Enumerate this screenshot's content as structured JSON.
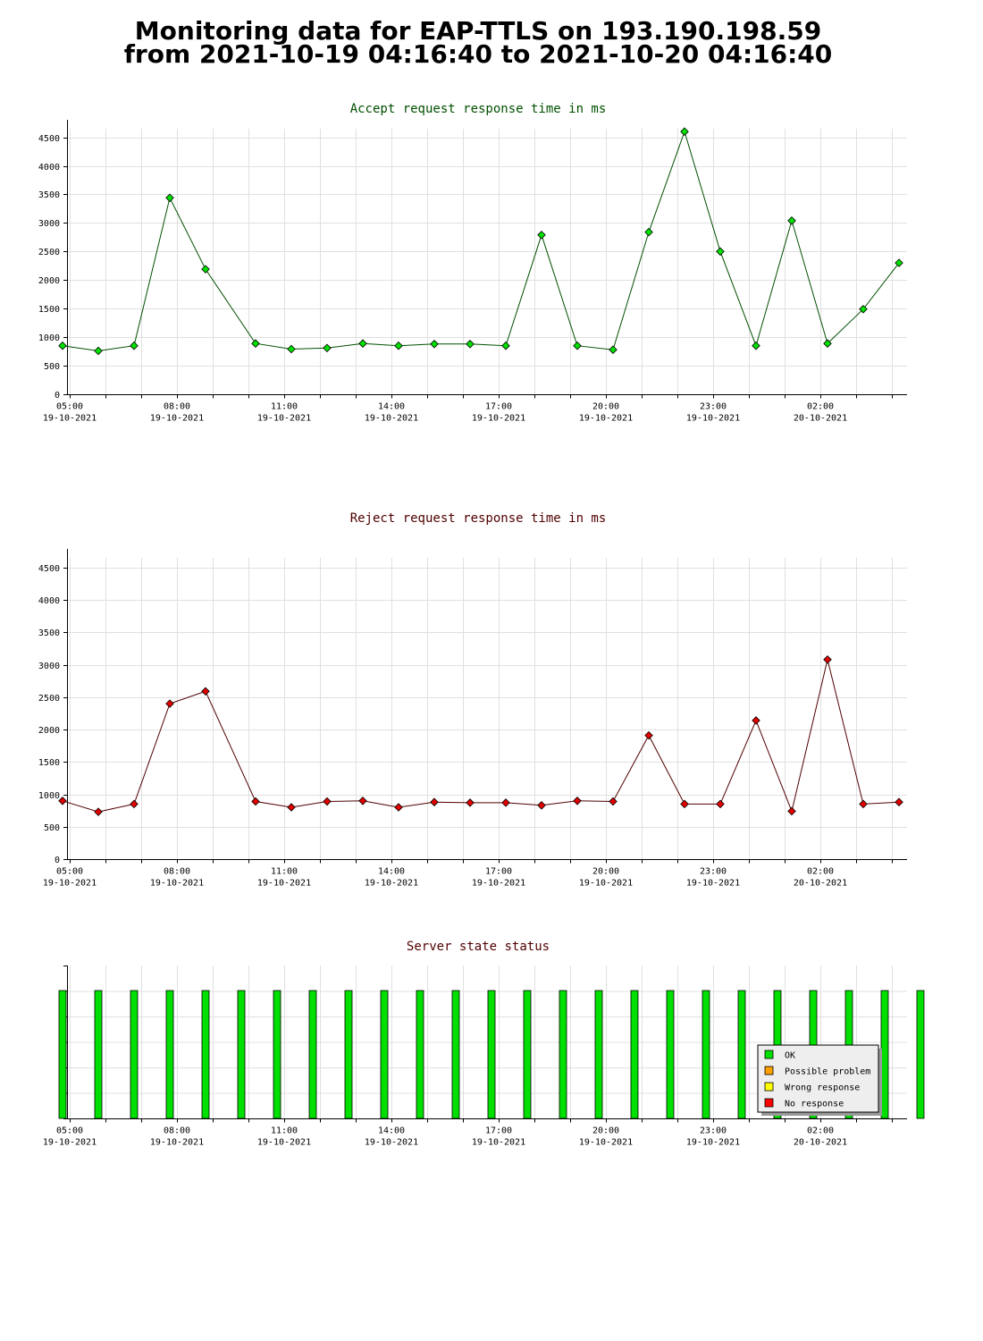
{
  "header": {
    "line1": "Monitoring data for EAP-TTLS on 193.190.198.59",
    "line2": "from 2021-10-19 04:16:40 to 2021-10-20 04:16:40"
  },
  "x_ticks": [
    {
      "time": "05:00",
      "date": "19-10-2021",
      "hours": 0
    },
    {
      "time": "08:00",
      "date": "19-10-2021",
      "hours": 3
    },
    {
      "time": "11:00",
      "date": "19-10-2021",
      "hours": 6
    },
    {
      "time": "14:00",
      "date": "19-10-2021",
      "hours": 9
    },
    {
      "time": "17:00",
      "date": "19-10-2021",
      "hours": 12
    },
    {
      "time": "20:00",
      "date": "19-10-2021",
      "hours": 15
    },
    {
      "time": "23:00",
      "date": "19-10-2021",
      "hours": 18
    },
    {
      "time": "02:00",
      "date": "20-10-2021",
      "hours": 21
    }
  ],
  "chart_data": [
    {
      "type": "line",
      "title": "Accept request response time in ms",
      "title_color": "#005000",
      "line_color": "#005000",
      "marker_color": "#00e000",
      "ylim": [
        0,
        4650
      ],
      "y_ticks": [
        0,
        500,
        1000,
        1500,
        2000,
        2500,
        3000,
        3500,
        4000,
        4500
      ],
      "x_hours": [
        -0.2,
        0.8,
        1.8,
        2.8,
        3.8,
        5.2,
        6.2,
        7.2,
        8.2,
        9.2,
        10.2,
        11.2,
        12.2,
        13.2,
        14.2,
        15.2,
        16.2,
        17.2,
        18.2,
        19.2,
        20.2,
        21.2,
        22.2,
        23.2
      ],
      "values": [
        850,
        760,
        850,
        3440,
        2190,
        890,
        790,
        810,
        890,
        850,
        880,
        880,
        850,
        2790,
        850,
        780,
        2840,
        4600,
        2500,
        850,
        3040,
        890,
        1490,
        2300
      ]
    },
    {
      "type": "line",
      "title": "Reject request response time in ms",
      "title_color": "#500000",
      "line_color": "#500000",
      "marker_color": "#e00000",
      "ylim": [
        0,
        4650
      ],
      "y_ticks": [
        0,
        500,
        1000,
        1500,
        2000,
        2500,
        3000,
        3500,
        4000,
        4500
      ],
      "x_hours": [
        -0.2,
        0.8,
        1.8,
        2.8,
        3.8,
        5.2,
        6.2,
        7.2,
        8.2,
        9.2,
        10.2,
        11.2,
        12.2,
        13.2,
        14.2,
        15.2,
        16.2,
        17.2,
        18.2,
        19.2,
        20.2,
        21.2,
        22.2,
        23.2
      ],
      "values": [
        900,
        730,
        850,
        2400,
        2590,
        890,
        800,
        890,
        900,
        800,
        880,
        870,
        870,
        830,
        900,
        890,
        1910,
        850,
        850,
        2140,
        740,
        3080,
        850,
        880
      ]
    },
    {
      "type": "bar",
      "title": "Server state status",
      "title_color": "#500000",
      "x_hours": [
        -0.2,
        0.8,
        1.8,
        2.8,
        3.8,
        4.8,
        5.8,
        6.8,
        7.8,
        8.8,
        9.8,
        10.8,
        11.8,
        12.8,
        13.8,
        14.8,
        15.8,
        16.8,
        17.8,
        18.8,
        19.8,
        20.8,
        21.8,
        22.8,
        23.8
      ],
      "values": [
        "OK",
        "OK",
        "OK",
        "OK",
        "OK",
        "OK",
        "OK",
        "OK",
        "OK",
        "OK",
        "OK",
        "OK",
        "OK",
        "OK",
        "OK",
        "OK",
        "OK",
        "OK",
        "OK",
        "OK",
        "OK",
        "OK",
        "OK",
        "OK",
        "OK"
      ],
      "legend": [
        {
          "label": "OK",
          "color": "#00e000"
        },
        {
          "label": "Possible problem",
          "color": "#ffa000"
        },
        {
          "label": "Wrong response",
          "color": "#ffff00"
        },
        {
          "label": "No response",
          "color": "#ff0000"
        }
      ],
      "legend_position": "bottom-right"
    }
  ]
}
